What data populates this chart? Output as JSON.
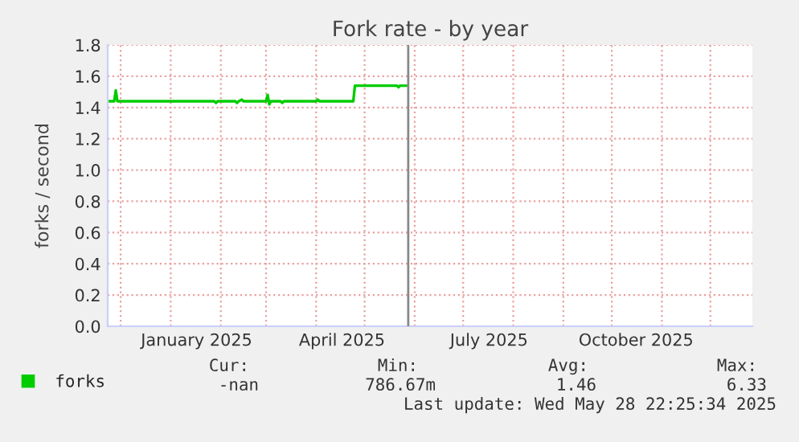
{
  "chart_data": {
    "type": "line",
    "title": "Fork rate - by year",
    "ylabel": "forks / second",
    "xlim": [
      "2024-11-23",
      "2025-12-27"
    ],
    "ylim": [
      0,
      1.8
    ],
    "xticks": [
      {
        "value": "2024-12-01",
        "label": null
      },
      {
        "value": "2025-01-01",
        "label": null
      },
      {
        "value": "2025-01-17",
        "label": "January 2025"
      },
      {
        "value": "2025-02-01",
        "label": null
      },
      {
        "value": "2025-03-01",
        "label": null
      },
      {
        "value": "2025-04-01",
        "label": null
      },
      {
        "value": "2025-04-17",
        "label": "April 2025"
      },
      {
        "value": "2025-05-01",
        "label": null
      },
      {
        "value": "2025-06-01",
        "label": null
      },
      {
        "value": "2025-07-01",
        "label": null
      },
      {
        "value": "2025-07-17",
        "label": "July 2025"
      },
      {
        "value": "2025-08-01",
        "label": null
      },
      {
        "value": "2025-09-01",
        "label": null
      },
      {
        "value": "2025-10-01",
        "label": null
      },
      {
        "value": "2025-10-16",
        "label": "October 2025"
      },
      {
        "value": "2025-11-01",
        "label": null
      },
      {
        "value": "2025-12-01",
        "label": null
      }
    ],
    "yticks": [
      {
        "value": 0,
        "label": "0.0"
      },
      {
        "value": 0.2,
        "label": "0.2"
      },
      {
        "value": 0.4,
        "label": "0.4"
      },
      {
        "value": 0.6,
        "label": "0.6"
      },
      {
        "value": 0.8,
        "label": "0.8"
      },
      {
        "value": 1.0,
        "label": "1.0"
      },
      {
        "value": 1.2,
        "label": "1.2"
      },
      {
        "value": 1.4,
        "label": "1.4"
      },
      {
        "value": 1.6,
        "label": "1.6"
      },
      {
        "value": 1.8,
        "label": "1.8"
      }
    ],
    "grid": true,
    "legend": "bottom left",
    "series": [
      {
        "name": "forks",
        "color": "#00cc00",
        "x": [
          "2024-11-23",
          "2024-11-27",
          "2024-11-28",
          "2024-11-29",
          "2025-01-28",
          "2025-01-29",
          "2025-01-30",
          "2025-02-10",
          "2025-02-11",
          "2025-02-12",
          "2025-02-14",
          "2025-02-15",
          "2025-03-01",
          "2025-03-02",
          "2025-03-03",
          "2025-03-04",
          "2025-03-10",
          "2025-03-11",
          "2025-03-12",
          "2025-04-01",
          "2025-04-02",
          "2025-04-03",
          "2025-04-24",
          "2025-04-25",
          "2025-05-21",
          "2025-05-22",
          "2025-05-23",
          "2025-05-27"
        ],
        "values": [
          1.44,
          1.44,
          1.51,
          1.44,
          1.44,
          1.43,
          1.44,
          1.44,
          1.43,
          1.44,
          1.45,
          1.44,
          1.44,
          1.48,
          1.42,
          1.44,
          1.44,
          1.43,
          1.44,
          1.44,
          1.45,
          1.44,
          1.44,
          1.54,
          1.54,
          1.53,
          1.54,
          1.54
        ]
      }
    ],
    "ref_lines": [
      {
        "axis": "x",
        "value": "2025-05-28",
        "color": "#888888"
      }
    ],
    "annotations": [
      "Cur:",
      "Min:",
      "Avg:",
      "Max:",
      "-nan",
      "786.67m",
      "1.46",
      "6.33",
      "Last update: Wed May 28 22:25:34 2025"
    ]
  }
}
